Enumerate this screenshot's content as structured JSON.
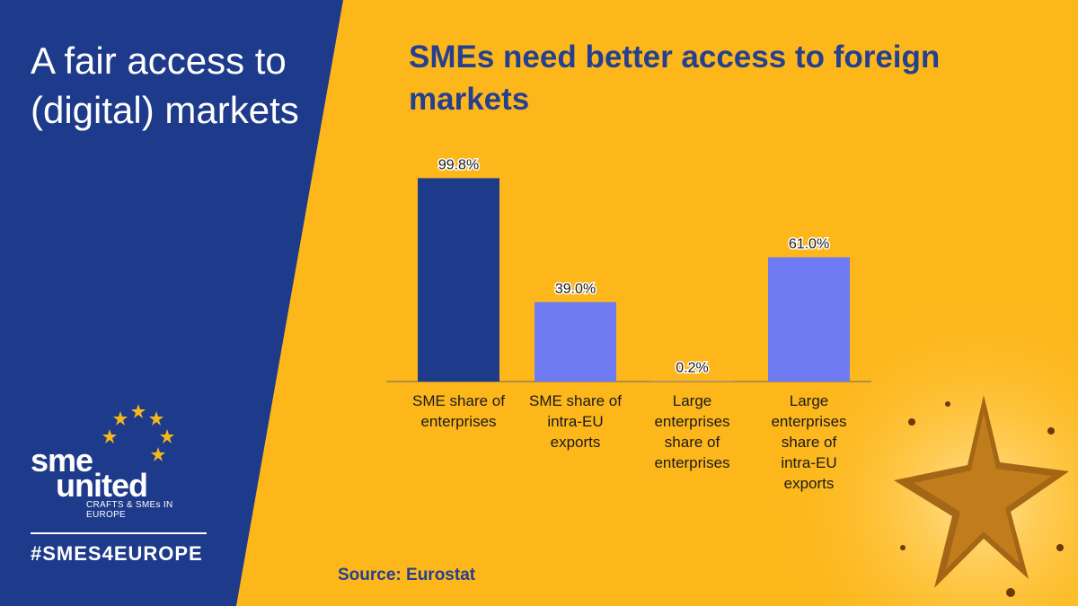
{
  "left_panel": {
    "title": "A fair access to (digital) markets",
    "logo_sme": "sme",
    "logo_united": "united",
    "logo_tagline": "CRAFTS & SMEs IN EUROPE",
    "hashtag": "#SMES4EUROPE",
    "background_color": "#1E3A8A"
  },
  "source": "Source: Eurostat",
  "chart_data": {
    "type": "bar",
    "title": "SMEs need better access to foreign markets",
    "categories": [
      "SME share of enterprises",
      "SME share of intra-EU exports",
      "Large enterprises share of enterprises",
      "Large enterprises share of intra-EU exports"
    ],
    "category_lines": [
      [
        "SME share of",
        "enterprises"
      ],
      [
        "SME share of",
        "intra-EU",
        "exports"
      ],
      [
        "Large",
        "enterprises",
        "share of",
        "enterprises"
      ],
      [
        "Large",
        "enterprises",
        "share of",
        "intra-EU",
        "exports"
      ]
    ],
    "values": [
      99.8,
      39.0,
      0.2,
      61.0
    ],
    "value_labels": [
      "99.8%",
      "39.0%",
      "0.2%",
      "61.0%"
    ],
    "bar_colors": [
      "#1E3A8A",
      "#6E7BF2",
      "#6E7BF2",
      "#6E7BF2"
    ],
    "ylim": [
      0,
      100
    ],
    "grid": false,
    "legend": "none"
  }
}
